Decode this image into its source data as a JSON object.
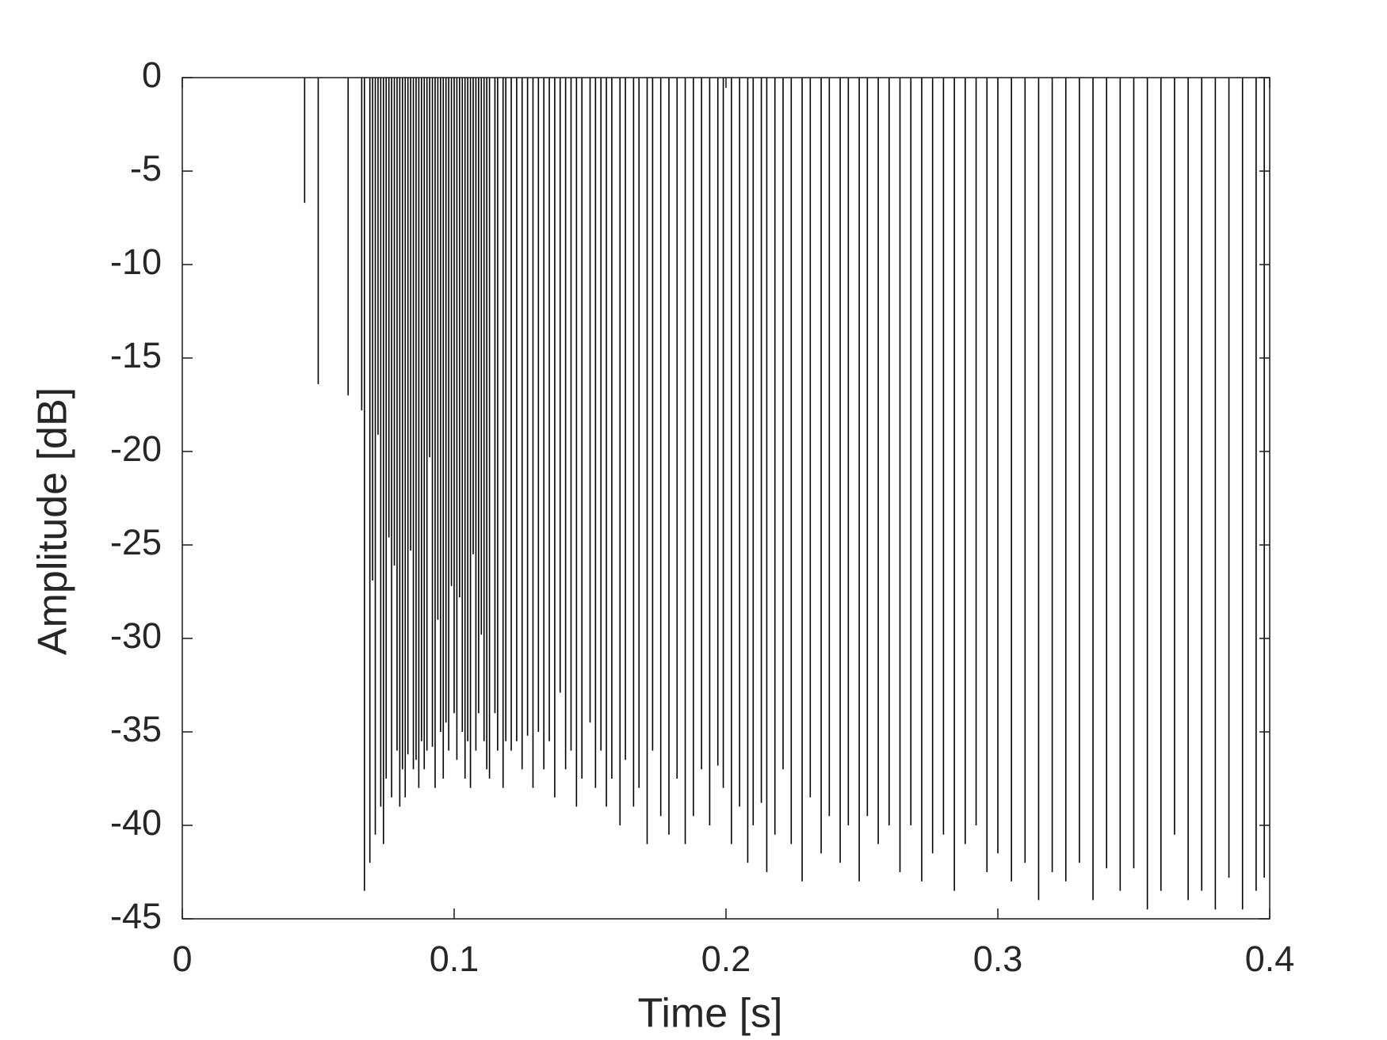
{
  "chart_data": {
    "type": "stem",
    "x_label": "Time [s]",
    "y_label": "Amplitude [dB]",
    "color": "#000000",
    "xlim": [
      0,
      0.4
    ],
    "ylim": [
      -45,
      0
    ],
    "xticks": [
      0,
      0.1,
      0.2,
      0.3,
      0.4
    ],
    "yticks": [
      0,
      -5,
      -10,
      -15,
      -20,
      -25,
      -30,
      -35,
      -40,
      -45
    ],
    "grid": false,
    "x": [
      0.045,
      0.05,
      0.061,
      0.066,
      0.067,
      0.069,
      0.07,
      0.071,
      0.072,
      0.073,
      0.074,
      0.075,
      0.076,
      0.077,
      0.078,
      0.079,
      0.08,
      0.081,
      0.082,
      0.083,
      0.084,
      0.085,
      0.086,
      0.087,
      0.088,
      0.089,
      0.09,
      0.091,
      0.092,
      0.093,
      0.094,
      0.095,
      0.096,
      0.097,
      0.098,
      0.099,
      0.1,
      0.101,
      0.102,
      0.103,
      0.104,
      0.105,
      0.106,
      0.107,
      0.108,
      0.109,
      0.11,
      0.111,
      0.112,
      0.113,
      0.115,
      0.116,
      0.118,
      0.119,
      0.121,
      0.123,
      0.125,
      0.127,
      0.129,
      0.131,
      0.133,
      0.135,
      0.137,
      0.139,
      0.141,
      0.143,
      0.145,
      0.147,
      0.15,
      0.152,
      0.154,
      0.156,
      0.158,
      0.161,
      0.163,
      0.166,
      0.168,
      0.171,
      0.173,
      0.176,
      0.179,
      0.182,
      0.185,
      0.188,
      0.191,
      0.194,
      0.197,
      0.199,
      0.202,
      0.205,
      0.208,
      0.21,
      0.213,
      0.215,
      0.218,
      0.221,
      0.224,
      0.228,
      0.231,
      0.235,
      0.238,
      0.242,
      0.245,
      0.249,
      0.252,
      0.256,
      0.26,
      0.264,
      0.268,
      0.272,
      0.276,
      0.28,
      0.284,
      0.288,
      0.292,
      0.296,
      0.3,
      0.305,
      0.31,
      0.315,
      0.32,
      0.325,
      0.33,
      0.335,
      0.34,
      0.345,
      0.35,
      0.355,
      0.36,
      0.365,
      0.37,
      0.375,
      0.38,
      0.385,
      0.39,
      0.395,
      0.398
    ],
    "values": [
      -6.7,
      -16.4,
      -17.0,
      -17.8,
      -43.5,
      -42,
      -26.9,
      -40.5,
      -19.1,
      -39,
      -41,
      -37.5,
      -24.6,
      -38.5,
      -26.1,
      -36,
      -39,
      -37,
      -38.5,
      -36.2,
      -25.3,
      -37,
      -36.5,
      -38,
      -35.5,
      -37,
      -36,
      -20.3,
      -35.8,
      -38,
      -29,
      -35,
      -37.5,
      -34.5,
      -36,
      -27.2,
      -34,
      -36.5,
      -27.8,
      -35,
      -37.5,
      -35.5,
      -38,
      -25.5,
      -36,
      -34,
      -29.8,
      -35.5,
      -37,
      -37.5,
      -34,
      -36,
      -38,
      -35.5,
      -36,
      -35.5,
      -37,
      -35.2,
      -38,
      -35,
      -37,
      -35.5,
      -38.5,
      -32.9,
      -37,
      -36,
      -39,
      -37.5,
      -34.5,
      -38,
      -36,
      -39,
      -37.5,
      -40,
      -36.5,
      -39,
      -38,
      -41,
      -36,
      -39.5,
      -40.5,
      -37.5,
      -41,
      -39.5,
      -37,
      -40,
      -36.8,
      -38,
      -41,
      -39,
      -42,
      -40,
      -38.8,
      -42.5,
      -40.5,
      -37,
      -41,
      -43,
      -38.5,
      -41.5,
      -39.5,
      -42,
      -40,
      -43,
      -39.5,
      -41,
      -40,
      -42.5,
      -40,
      -43,
      -41.5,
      -40.5,
      -43.5,
      -41,
      -40,
      -42.5,
      -41.5,
      -43,
      -42,
      -44,
      -42.5,
      -43,
      -42,
      -44,
      -42.3,
      -43.5,
      -42.3,
      -44.5,
      -43.5,
      -40.5,
      -44,
      -43.5,
      -44.5,
      -42.8,
      -44.5,
      -43.5,
      -42.8
    ]
  }
}
